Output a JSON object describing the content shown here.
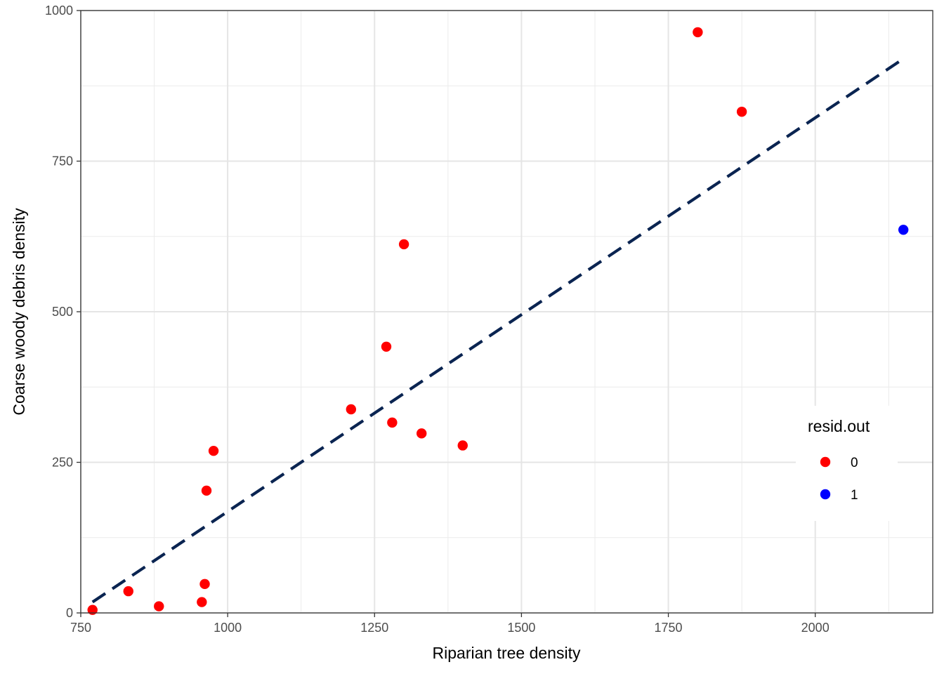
{
  "chart_data": {
    "type": "scatter",
    "xlabel": "Riparian tree density",
    "ylabel": "Coarse woody debris density",
    "xlim": [
      750,
      2200
    ],
    "ylim": [
      0,
      1000
    ],
    "x_ticks": [
      750,
      1000,
      1250,
      1500,
      1750,
      2000
    ],
    "x_tick_labels": [
      "750",
      "1000",
      "1250",
      "1500",
      "1750",
      "2000"
    ],
    "y_ticks": [
      0,
      250,
      500,
      750,
      1000
    ],
    "y_tick_labels": [
      "0",
      "250",
      "500",
      "750",
      "1000"
    ],
    "grid": true,
    "legend": {
      "title": "resid.out",
      "position": "right",
      "entries": [
        {
          "label": "0",
          "color": "#ff0000"
        },
        {
          "label": "1",
          "color": "#0000ff"
        }
      ]
    },
    "points": [
      {
        "x": 770,
        "y": 5,
        "group": "0"
      },
      {
        "x": 831,
        "y": 36,
        "group": "0"
      },
      {
        "x": 883,
        "y": 11,
        "group": "0"
      },
      {
        "x": 956,
        "y": 18,
        "group": "0"
      },
      {
        "x": 961,
        "y": 48,
        "group": "0"
      },
      {
        "x": 964,
        "y": 203,
        "group": "0"
      },
      {
        "x": 976,
        "y": 269,
        "group": "0"
      },
      {
        "x": 1210,
        "y": 338,
        "group": "0"
      },
      {
        "x": 1270,
        "y": 442,
        "group": "0"
      },
      {
        "x": 1280,
        "y": 316,
        "group": "0"
      },
      {
        "x": 1300,
        "y": 612,
        "group": "0"
      },
      {
        "x": 1330,
        "y": 298,
        "group": "0"
      },
      {
        "x": 1400,
        "y": 278,
        "group": "0"
      },
      {
        "x": 1800,
        "y": 964,
        "group": "0"
      },
      {
        "x": 1875,
        "y": 832,
        "group": "0"
      },
      {
        "x": 2150,
        "y": 636,
        "group": "1"
      }
    ],
    "fit_line": {
      "style": "dashed",
      "color": "#0a2451",
      "start": {
        "x": 770,
        "y": 18
      },
      "end": {
        "x": 2150,
        "y": 920
      }
    }
  }
}
